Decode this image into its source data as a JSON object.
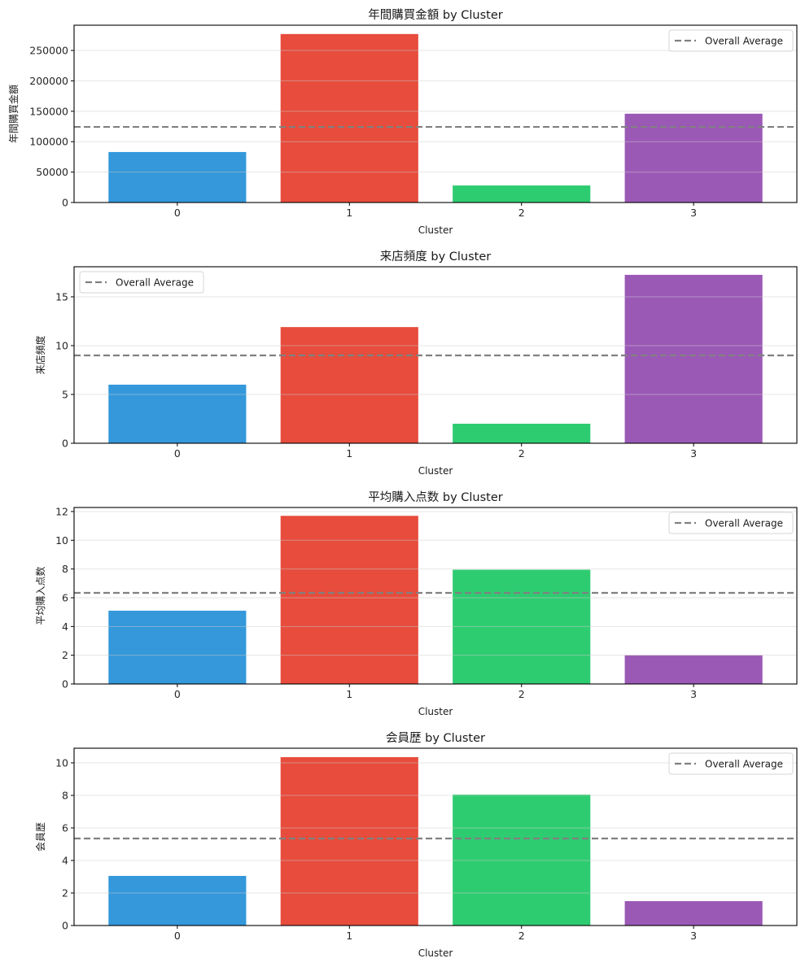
{
  "figure": {
    "background": "#ffffff",
    "grid_color": "#e6e6e6",
    "avg_line_color": "#808080",
    "cluster_colors": [
      "#3498db",
      "#e74c3c",
      "#2ecc71",
      "#9b59b6"
    ]
  },
  "chart_data": [
    {
      "type": "bar",
      "title": "年間購買金額 by Cluster",
      "xlabel": "Cluster",
      "ylabel": "年間購買金額",
      "categories": [
        "0",
        "1",
        "2",
        "3"
      ],
      "values": [
        83000,
        277000,
        28000,
        146000
      ],
      "reference_line": {
        "label": "Overall Average",
        "value": 124300,
        "style": "dashed"
      },
      "ylim": [
        0,
        291500
      ],
      "yticks": [
        0,
        50000,
        100000,
        150000,
        200000,
        250000
      ],
      "ytick_labels": [
        "0",
        "50000",
        "100000",
        "150000",
        "200000",
        "250000"
      ],
      "grid": "y",
      "legend": {
        "entries": [
          "Overall Average"
        ],
        "position": "top-right"
      }
    },
    {
      "type": "bar",
      "title": "来店頻度 by Cluster",
      "xlabel": "Cluster",
      "ylabel": "来店頻度",
      "categories": [
        "0",
        "1",
        "2",
        "3"
      ],
      "values": [
        6.0,
        11.9,
        2.0,
        17.25
      ],
      "reference_line": {
        "label": "Overall Average",
        "value": 9.0,
        "style": "dashed"
      },
      "ylim": [
        0,
        18.08
      ],
      "yticks": [
        0,
        5,
        10,
        15
      ],
      "ytick_labels": [
        "0",
        "5",
        "10",
        "15"
      ],
      "grid": "y",
      "legend": {
        "entries": [
          "Overall Average"
        ],
        "position": "top-left"
      }
    },
    {
      "type": "bar",
      "title": "平均購入点数 by Cluster",
      "xlabel": "Cluster",
      "ylabel": "平均購入点数",
      "categories": [
        "0",
        "1",
        "2",
        "3"
      ],
      "values": [
        5.1,
        11.7,
        7.95,
        2.0
      ],
      "reference_line": {
        "label": "Overall Average",
        "value": 6.34,
        "style": "dashed"
      },
      "ylim": [
        0,
        12.28
      ],
      "yticks": [
        0,
        2,
        4,
        6,
        8,
        10,
        12
      ],
      "ytick_labels": [
        "0",
        "2",
        "4",
        "6",
        "8",
        "10",
        "12"
      ],
      "grid": "y",
      "legend": {
        "entries": [
          "Overall Average"
        ],
        "position": "top-right"
      }
    },
    {
      "type": "bar",
      "title": "会員歴 by Cluster",
      "xlabel": "Cluster",
      "ylabel": "会員歴",
      "categories": [
        "0",
        "1",
        "2",
        "3"
      ],
      "values": [
        3.05,
        10.35,
        8.05,
        1.5
      ],
      "reference_line": {
        "label": "Overall Average",
        "value": 5.35,
        "style": "dashed"
      },
      "ylim": [
        0,
        10.9
      ],
      "yticks": [
        0,
        2,
        4,
        6,
        8,
        10
      ],
      "ytick_labels": [
        "0",
        "2",
        "4",
        "6",
        "8",
        "10"
      ],
      "grid": "y",
      "legend": {
        "entries": [
          "Overall Average"
        ],
        "position": "top-right"
      }
    }
  ]
}
